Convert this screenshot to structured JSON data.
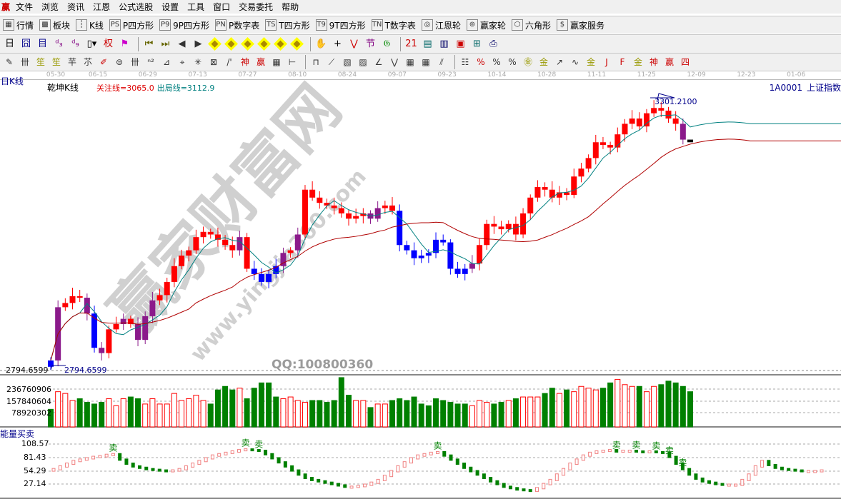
{
  "menu": {
    "logo": "赢",
    "items": [
      "文件",
      "浏览",
      "资讯",
      "江恩",
      "公式选股",
      "设置",
      "工具",
      "窗口",
      "交易委托",
      "帮助"
    ]
  },
  "toolbar1": [
    {
      "icon": "table-icon",
      "glyph": "▦",
      "label": "行情"
    },
    {
      "icon": "blocks-icon",
      "glyph": "▩",
      "label": "板块"
    },
    {
      "icon": "kline-icon",
      "glyph": "┆",
      "label": "K线"
    },
    {
      "icon": "ps-icon",
      "glyph": "PS",
      "label": "P四方形"
    },
    {
      "icon": "p9-icon",
      "glyph": "P9",
      "label": "9P四方形"
    },
    {
      "icon": "pn-icon",
      "glyph": "PN",
      "label": "P数字表"
    },
    {
      "icon": "ts-icon",
      "glyph": "TS",
      "label": "T四方形"
    },
    {
      "icon": "t9-icon",
      "glyph": "T9",
      "label": "9T四方形"
    },
    {
      "icon": "tn-icon",
      "glyph": "TN",
      "label": "T数字表"
    },
    {
      "icon": "gann-wheel-icon",
      "glyph": "◎",
      "label": "江恩轮"
    },
    {
      "icon": "big-wheel-icon",
      "glyph": "⊚",
      "label": "赢家轮"
    },
    {
      "icon": "hexagon-icon",
      "glyph": "⬡",
      "label": "六角形"
    },
    {
      "icon": "dollar-icon",
      "glyph": "$",
      "label": "赢家服务"
    }
  ],
  "toolbar2": [
    "day-period-icon",
    "window-icon",
    "self-select-icon",
    "n3-icon",
    "n9-icon",
    "candle-type-icon",
    "weight-icon",
    "flag-icon",
    "first-icon",
    "last-icon",
    "left-icon",
    "right-icon",
    "move-left-icon",
    "move-right-icon",
    "expand-icon",
    "shrink-icon",
    "zoom-in-icon",
    "zoom-out-icon",
    "hand-icon",
    "crosshair-icon",
    "line-icon",
    "section-icon",
    "tab-icon",
    "calendar-icon",
    "calc-icon",
    "report-icon",
    "save-icon",
    "network-icon",
    "print-icon"
  ],
  "toolbar2_glyphs": [
    "日▾",
    "囧",
    "目",
    "ᵈ₃",
    "ᵈ₉",
    "▯▾",
    "权",
    "⚑",
    "⏮",
    "⏭",
    "◀",
    "▶",
    "◆",
    "◆",
    "◆",
    "◆",
    "◆",
    "◆",
    "✋",
    "+",
    "⋁",
    "节",
    "𝔊",
    "21",
    "▤",
    "▥",
    "▣",
    "⊞",
    "⎙"
  ],
  "toolbar3": [
    "pen-icon",
    "parallel-icon",
    "gold-icon",
    "gold2-icon",
    "fib-icon",
    "spiral-icon",
    "brush-icon",
    "circle-icon",
    "grid-icon",
    "n2-icon",
    "triangle-icon",
    "target-icon",
    "radar-icon",
    "box-icon",
    "angle-icon",
    "god-icon",
    "win-icon",
    "calendar-grid-icon",
    "span-icon",
    "rect-icon",
    "fan-icon",
    "gann-box-icon",
    "gann-fan-icon",
    "angle-line-icon",
    "v-icon",
    "grid2-icon",
    "grid3-icon",
    "slash-icon",
    "ruler-icon",
    "percent-slash-icon",
    "percent-icon",
    "percent-line-icon",
    "gold-circle-icon",
    "gold-line-icon",
    "arrow-pen-icon",
    "sine-icon",
    "gold-box-icon",
    "j-angle-icon",
    "f-angle-icon",
    "gold-angle-icon",
    "god-angle-icon",
    "win-angle-icon",
    "four-angle-icon"
  ],
  "toolbar3_glyphs": [
    "✎",
    "卌",
    "笙",
    "笙",
    "芉",
    "䒕",
    "✐",
    "⊜",
    "卌",
    "ⁿ²",
    "⊿",
    "⌖",
    "✳",
    "⊠",
    "/'",
    "神",
    "赢",
    "▦",
    "⊢",
    "⊓",
    "⟋",
    "▧",
    "▨",
    "∠",
    "⋁",
    "▦",
    "▦",
    "⫽",
    "☷",
    "%",
    "%",
    "%",
    "㊎",
    "金",
    "↗",
    "∿",
    "金",
    "J",
    "F",
    "金",
    "神",
    "赢",
    "四"
  ],
  "dates": [
    "05-30",
    "06-15",
    "06-29",
    "07-13",
    "07-27",
    "08-10",
    "08-24",
    "09-07",
    "09-23",
    "10-14",
    "10-28",
    "11-11",
    "11-25",
    "12-09",
    "12-23",
    "01-06"
  ],
  "header": {
    "period": "日K线",
    "indicator": "乾坤K线",
    "focus_line": "关注线=3065.0",
    "exit_line": "出局线=3112.9",
    "code": "1A0001",
    "name": "上证指数"
  },
  "price_labels": {
    "high": "3301.2100",
    "low": "2794.6599",
    "axis_low": "2794.6599"
  },
  "volume_axis": [
    "236760906",
    "157840604",
    "78920302"
  ],
  "energy": {
    "title": "能量买卖",
    "axis": [
      "108.57",
      "81.43",
      "54.29",
      "27.14"
    ],
    "sell_label": "卖"
  },
  "watermark": {
    "main": "赢家财富网",
    "url": "www.yingjia360.com",
    "qq": "QQ:100800360"
  },
  "colors": {
    "up": "#ff0000",
    "purple": "#8b1a8b",
    "blue": "#0000ff",
    "down_vol": "#008000",
    "ma_short": "#008080",
    "ma_long": "#b00000",
    "energy_up": "#f08080",
    "energy_down": "#008000"
  },
  "chart_data": {
    "type": "candlestick",
    "ylim": [
      2794.6599,
      3301.21
    ],
    "closes": [
      2811,
      2912,
      2920,
      2933,
      2930,
      2900,
      2835,
      2825,
      2870,
      2880,
      2890,
      2880,
      2850,
      2895,
      2925,
      2935,
      2960,
      2990,
      3010,
      3020,
      3045,
      3055,
      3050,
      3040,
      3030,
      3020,
      3045,
      2985,
      2975,
      2960,
      2975,
      2990,
      3015,
      3020,
      3050,
      3135,
      3120,
      3110,
      3105,
      3100,
      3090,
      3080,
      3085,
      3090,
      3080,
      3100,
      3105,
      3095,
      3030,
      3020,
      3005,
      3010,
      3015,
      3040,
      3035,
      2985,
      2975,
      2985,
      2995,
      3030,
      3070,
      3065,
      3060,
      3070,
      3050,
      3090,
      3120,
      3140,
      3135,
      3120,
      3130,
      3125,
      3160,
      3175,
      3195,
      3225,
      3220,
      3215,
      3240,
      3260,
      3270,
      3255,
      3280,
      3290,
      3285,
      3270,
      3260,
      3230,
      3225
    ],
    "candle_colors": "bprrrpbprrprppprrrrrrrrrrrprbbbbprprrrrrrrrrpprrbbbbbbbbbbprrrrrrrrrrrrrrrrrrrrrrrrrrrrp",
    "volumes": [
      100000000.0,
      200000000.0,
      190000000.0,
      150000000.0,
      160000000.0,
      140000000.0,
      130000000.0,
      140000000.0,
      160000000.0,
      120000000.0,
      160000000.0,
      170000000.0,
      160000000.0,
      130000000.0,
      160000000.0,
      130000000.0,
      130000000.0,
      190000000.0,
      150000000.0,
      160000000.0,
      180000000.0,
      150000000.0,
      130000000.0,
      210000000.0,
      230000000.0,
      210000000.0,
      220000000.0,
      160000000.0,
      220000000.0,
      250000000.0,
      250000000.0,
      170000000.0,
      160000000.0,
      170000000.0,
      150000000.0,
      140000000.0,
      150000000.0,
      150000000.0,
      140000000.0,
      150000000.0,
      280000000.0,
      180000000.0,
      150000000.0,
      150000000.0,
      110000000.0,
      130000000.0,
      130000000.0,
      150000000.0,
      160000000.0,
      150000000.0,
      170000000.0,
      130000000.0,
      120000000.0,
      160000000.0,
      150000000.0,
      140000000.0,
      130000000.0,
      130000000.0,
      120000000.0,
      150000000.0,
      140000000.0,
      130000000.0,
      140000000.0,
      150000000.0,
      160000000.0,
      170000000.0,
      170000000.0,
      170000000.0,
      190000000.0,
      220000000.0,
      190000000.0,
      210000000.0,
      200000000.0,
      230000000.0,
      220000000.0,
      210000000.0,
      220000000.0,
      250000000.0,
      270000000.0,
      240000000.0,
      230000000.0,
      230000000.0,
      200000000.0,
      230000000.0,
      240000000.0,
      260000000.0,
      250000000.0,
      230000000.0,
      200000000.0
    ],
    "volume_ylim": [
      0,
      300000000.0
    ],
    "energy_values": [
      58,
      62,
      66,
      70,
      72,
      74,
      76,
      77,
      79,
      80,
      72,
      66,
      62,
      60,
      58,
      57,
      56,
      55,
      56,
      58,
      62,
      66,
      70,
      74,
      78,
      80,
      82,
      84,
      86,
      87,
      86,
      85,
      80,
      74,
      68,
      62,
      56,
      50,
      45,
      42,
      40,
      38,
      36,
      34,
      32,
      32,
      33,
      35,
      38,
      42,
      48,
      55,
      62,
      68,
      74,
      78,
      80,
      82,
      83,
      78,
      72,
      66,
      60,
      55,
      50,
      45,
      40,
      36,
      32,
      30,
      28,
      27,
      26,
      30,
      36,
      42,
      50,
      58,
      66,
      72,
      78,
      82,
      84,
      85,
      86,
      84,
      85,
      85,
      84,
      83,
      84,
      83,
      82,
      76,
      66,
      58,
      50,
      44,
      40,
      38,
      36,
      35,
      35,
      35,
      42,
      50,
      62,
      70,
      64,
      60,
      58,
      57,
      56,
      55,
      55,
      55,
      56
    ],
    "energy_ylim": [
      14,
      115
    ],
    "sell_indices": [
      9,
      29,
      31,
      58,
      85,
      88,
      91,
      93,
      95
    ]
  }
}
